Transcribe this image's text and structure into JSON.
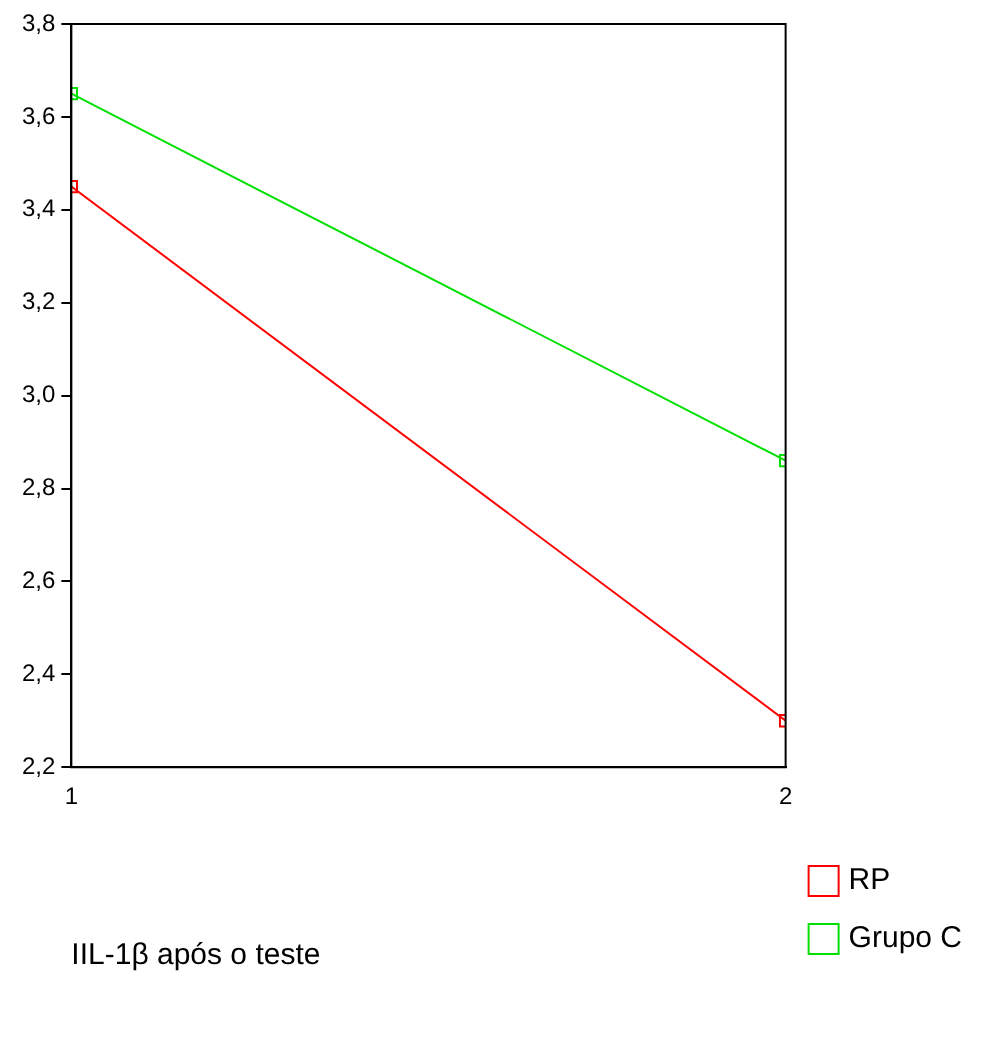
{
  "chart_data": {
    "type": "line",
    "xlabel": "IIL-1β após o teste",
    "x": [
      1,
      2
    ],
    "series": [
      {
        "name": "RP",
        "color": "#ff0000",
        "values": [
          3.45,
          2.3
        ]
      },
      {
        "name": "Grupo C",
        "color": "#00e000",
        "values": [
          3.65,
          2.86
        ]
      }
    ],
    "xlim": [
      1,
      2
    ],
    "xticks": [
      1,
      2
    ],
    "ylim": [
      2.2,
      3.8
    ],
    "yticks": [
      {
        "value": 2.2,
        "label": "2,2"
      },
      {
        "value": 2.4,
        "label": "2,4"
      },
      {
        "value": 2.6,
        "label": "2,6"
      },
      {
        "value": 2.8,
        "label": "2,8"
      },
      {
        "value": 3.0,
        "label": "3,0"
      },
      {
        "value": 3.2,
        "label": "3,2"
      },
      {
        "value": 3.4,
        "label": "3,4"
      },
      {
        "value": 3.6,
        "label": "3,6"
      },
      {
        "value": 3.8,
        "label": "3,8"
      }
    ],
    "grid": false,
    "legend": "bottom right",
    "marker": "square",
    "line_style": "solid"
  }
}
